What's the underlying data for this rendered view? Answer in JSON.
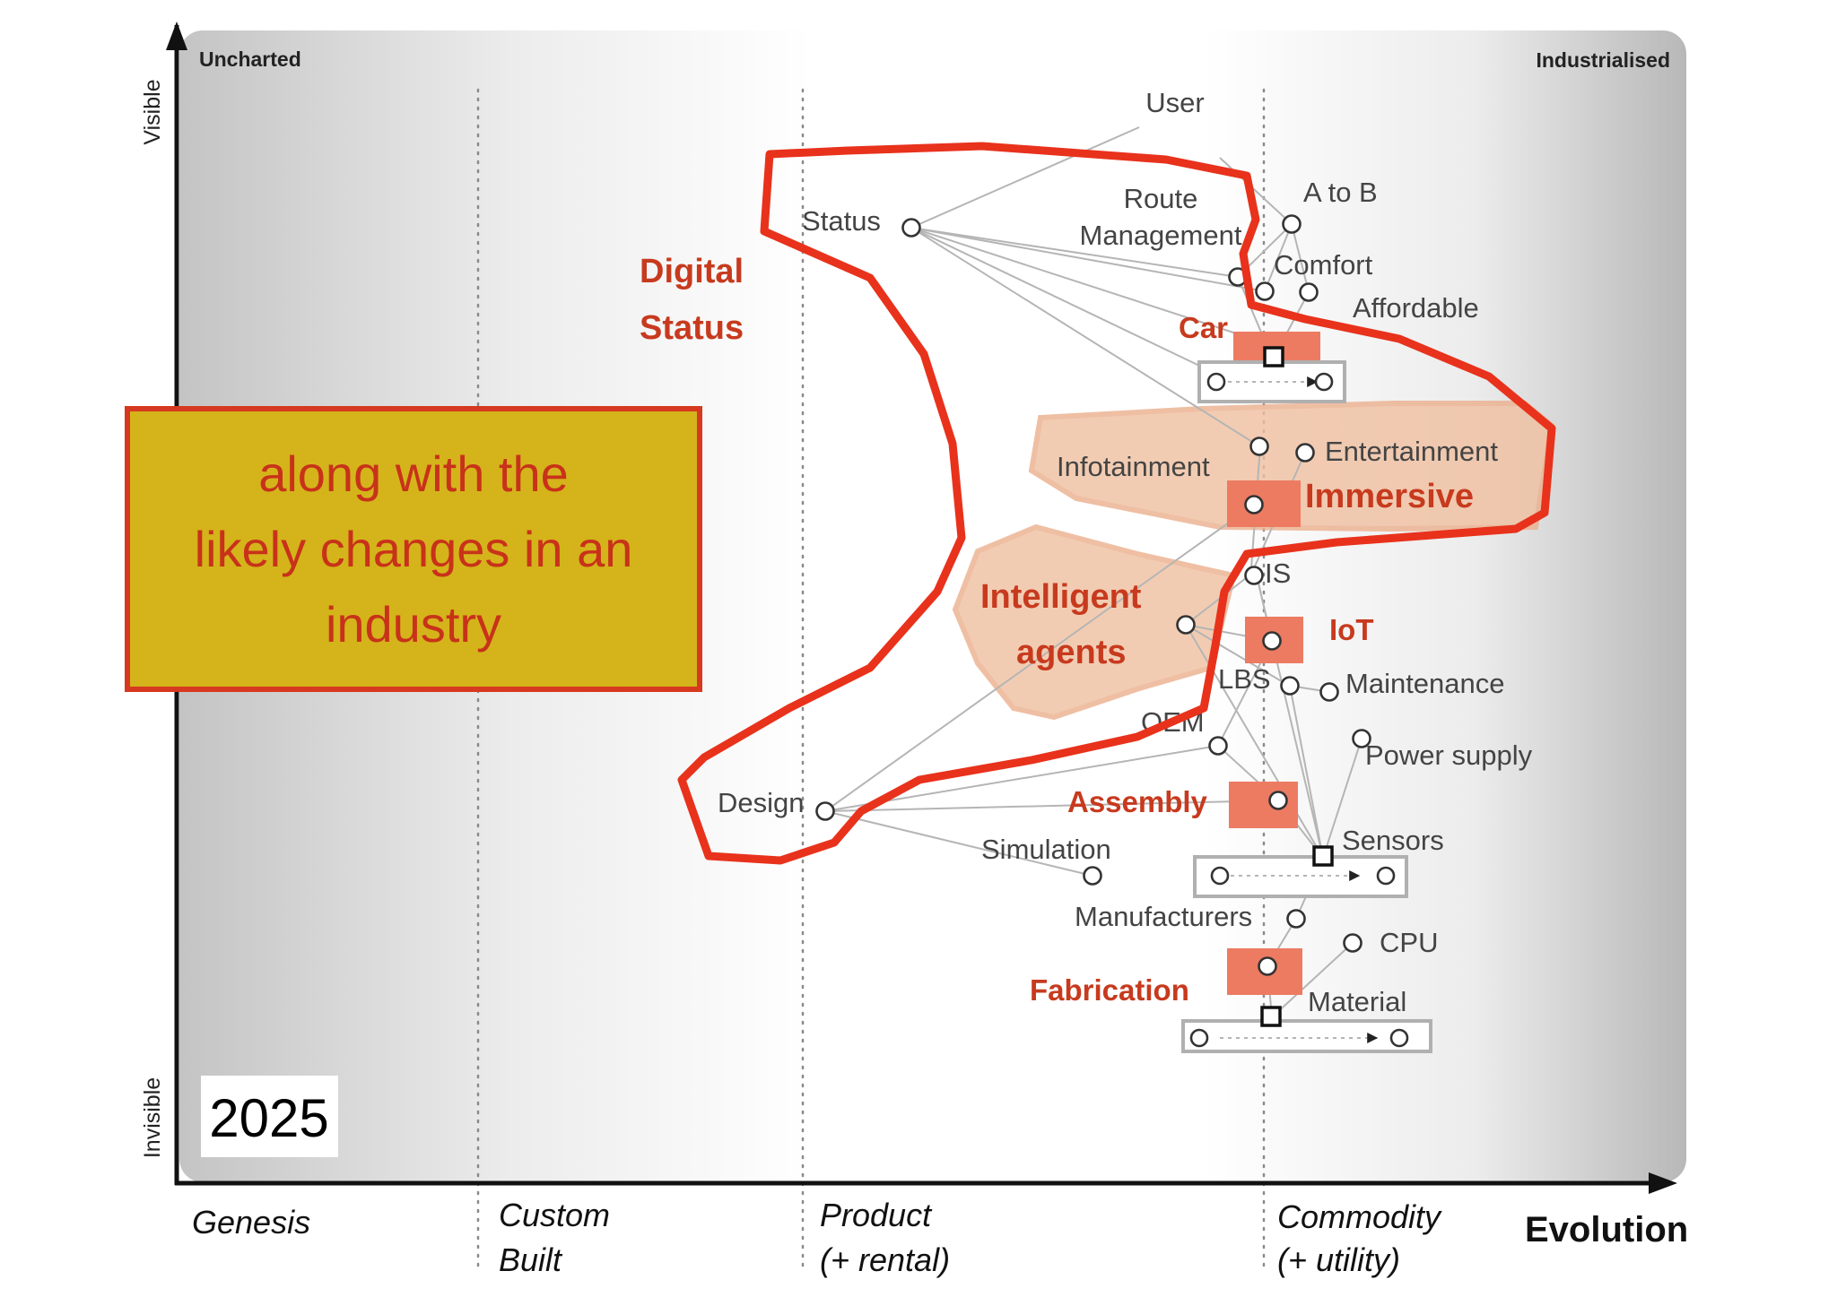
{
  "map": {
    "corner_left": "Uncharted",
    "corner_right": "Industrialised",
    "y_axis_top": "Visible",
    "y_axis_bottom": "Invisible",
    "x_axis_title": "Evolution",
    "stages": [
      {
        "line1": "Genesis",
        "line2": ""
      },
      {
        "line1": "Custom",
        "line2": "Built"
      },
      {
        "line1": "Product",
        "line2": "(+ rental)"
      },
      {
        "line1": "Commodity",
        "line2": "(+ utility)"
      }
    ],
    "year": "2025"
  },
  "callout": {
    "lines": [
      "along with the",
      "likely changes in an",
      "industry"
    ],
    "background": "#d4b41a",
    "border": "#d6391f"
  },
  "components": {
    "user": "User",
    "status": "Status",
    "route_line1": "Route",
    "route_line2": "Management",
    "a_to_b": "A to B",
    "comfort": "Comfort",
    "affordable": "Affordable",
    "infotainment": "Infotainment",
    "entertainment": "Entertainment",
    "is": "IS",
    "lbs": "LBS",
    "maintenance": "Maintenance",
    "oem": "OEM",
    "power_supply": "Power supply",
    "design": "Design",
    "simulation": "Simulation",
    "sensors": "Sensors",
    "manufacturers": "Manufacturers",
    "cpu": "CPU",
    "material": "Material"
  },
  "annotations": {
    "digital_status_line1": "Digital",
    "digital_status_line2": "Status",
    "car": "Car",
    "immersive": "Immersive",
    "intelligent_line1": "Intelligent",
    "intelligent_line2": "agents",
    "iot": "IoT",
    "assembly": "Assembly",
    "fabrication": "Fabrication"
  },
  "colors": {
    "highlight_red": "#e8321c",
    "annotation_text": "#c73a1e",
    "region_fill": "#f0c0a0",
    "red_square": "#ec7b62"
  }
}
